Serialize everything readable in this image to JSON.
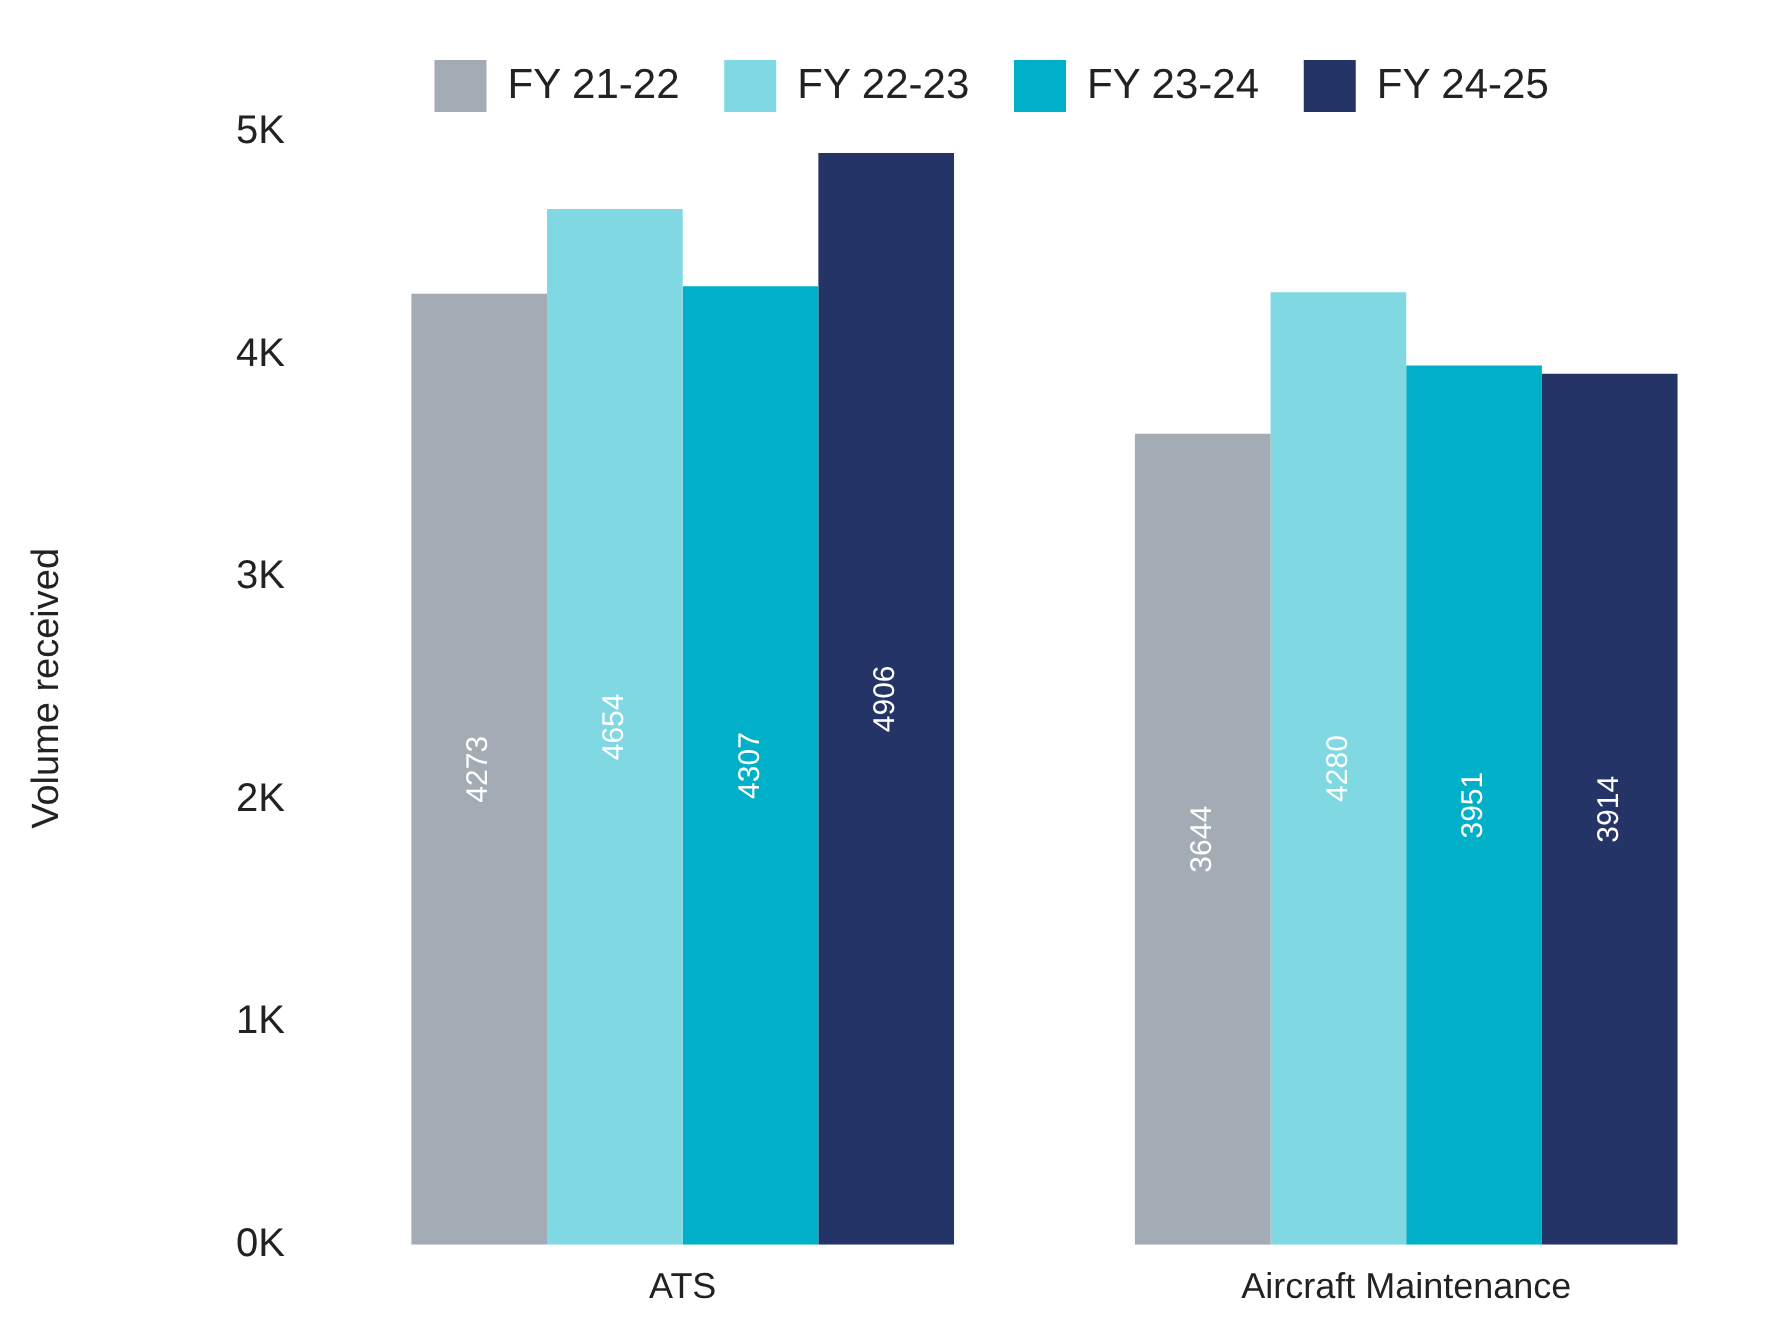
{
  "chart_data": {
    "type": "bar",
    "ylabel": "Volume received",
    "categories": [
      "ATS",
      "Aircraft Maintenance"
    ],
    "series": [
      {
        "name": "FY 21-22",
        "color": "#a3abb5",
        "values": [
          4273,
          3644
        ]
      },
      {
        "name": "FY 22-23",
        "color": "#7fd8e2",
        "values": [
          4654,
          4280
        ]
      },
      {
        "name": "FY 23-24",
        "color": "#00b0c8",
        "values": [
          4307,
          3951
        ]
      },
      {
        "name": "FY 24-25",
        "color": "#253466",
        "values": [
          4906,
          3914
        ]
      }
    ],
    "ylim": [
      0,
      5000
    ],
    "yticks": [
      {
        "value": 0,
        "label": "0K"
      },
      {
        "value": 1000,
        "label": "1K"
      },
      {
        "value": 2000,
        "label": "2K"
      },
      {
        "value": 3000,
        "label": "3K"
      },
      {
        "value": 4000,
        "label": "4K"
      },
      {
        "value": 5000,
        "label": "5K"
      }
    ],
    "grid": false,
    "legend": "top",
    "data_labels": true
  }
}
